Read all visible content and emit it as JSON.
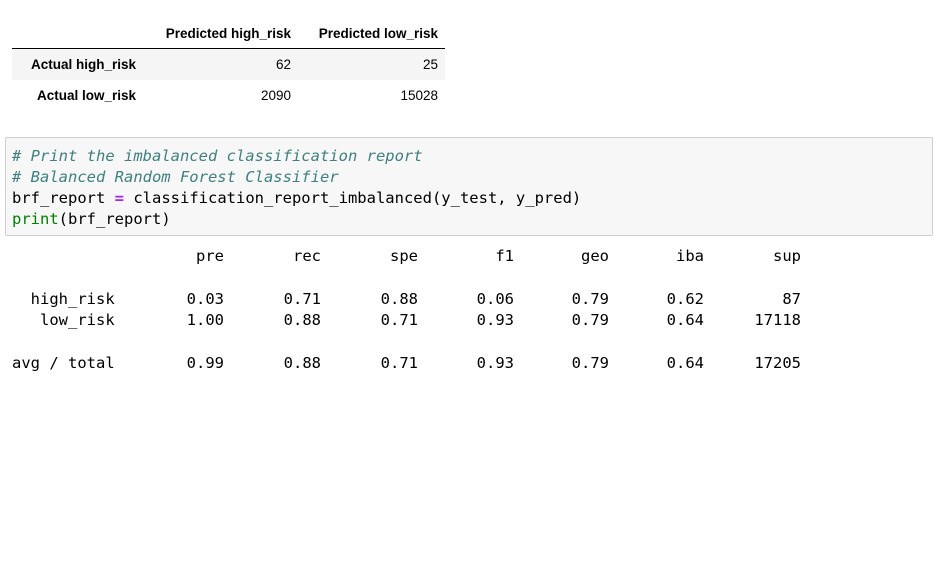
{
  "confusion_matrix": {
    "columns": [
      "Predicted high_risk",
      "Predicted low_risk"
    ],
    "rows": [
      {
        "label": "Actual high_risk",
        "values": [
          "62",
          "25"
        ]
      },
      {
        "label": "Actual low_risk",
        "values": [
          "2090",
          "15028"
        ]
      }
    ]
  },
  "code_cell": {
    "comment1": "# Print the imbalanced classification report",
    "comment2": "# Balanced Random Forest Classifier",
    "line3_lhs": "brf_report ",
    "line3_op": "=",
    "line3_rhs": " classification_report_imbalanced(y_test, y_pred)",
    "line4_fn": "print",
    "line4_args": "(brf_report)"
  },
  "report": {
    "headers": [
      "pre",
      "rec",
      "spe",
      "f1",
      "geo",
      "iba",
      "sup"
    ],
    "rows": [
      {
        "label": "  high_risk",
        "values": [
          "0.03",
          "0.71",
          "0.88",
          "0.06",
          "0.79",
          "0.62",
          "87"
        ]
      },
      {
        "label": "   low_risk",
        "values": [
          "1.00",
          "0.88",
          "0.71",
          "0.93",
          "0.79",
          "0.64",
          "17118"
        ]
      }
    ],
    "total": {
      "label": "avg / total",
      "values": [
        "0.99",
        "0.88",
        "0.71",
        "0.93",
        "0.79",
        "0.64",
        "17205"
      ]
    }
  }
}
